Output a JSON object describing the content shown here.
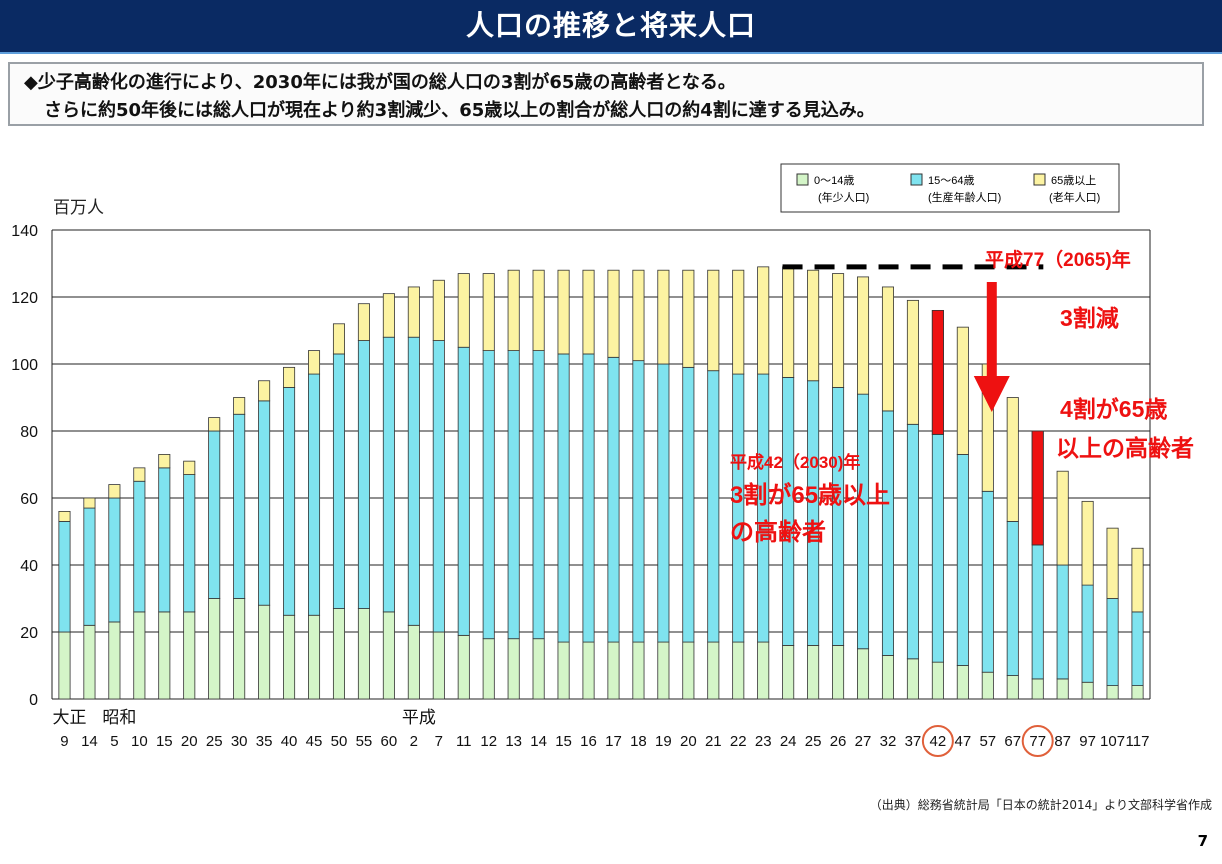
{
  "header": {
    "title": "人口の推移と将来人口"
  },
  "summary": {
    "line1": "◆少子高齢化の進行により、2030年には我が国の総人口の3割が65歳の高齢者となる。",
    "line2": "さらに約50年後には総人口が現在より約3割減少、65歳以上の割合が総人口の約4割に達する見込み。"
  },
  "legend": [
    {
      "label": "0〜14歳",
      "sub": "(年少人口)",
      "color": "#d4f5c8"
    },
    {
      "label": "15〜64歳",
      "sub": "(生産年齢人口)",
      "color": "#7fe3ef"
    },
    {
      "label": "65歳以上",
      "sub": "(老年人口)",
      "color": "#fcf3a2"
    }
  ],
  "annotations": {
    "a1_title": "平成77（2065)年",
    "a1_decrease": "3割減",
    "a1_elderly1": "4割が65歳",
    "a1_elderly2": "以上の高齢者",
    "a2_title": "平成42（2030)年",
    "a2_line1": "3割が65歳以上",
    "a2_line2": "の高齢者"
  },
  "footer": {
    "source": "（出典）総務省統計局「日本の統計2014」より文部科学省作成",
    "page": "7"
  },
  "colors": {
    "young": "#d4f5c8",
    "working": "#7fe3ef",
    "elderly": "#fcf3a2",
    "accent": "#ee1111",
    "header": "#0a2a63",
    "circle": "#e0603a"
  },
  "chart_data": {
    "type": "bar",
    "stacked": true,
    "ylabel": "百万人",
    "ylim": [
      0,
      140
    ],
    "yticks": [
      0,
      20,
      40,
      60,
      80,
      100,
      120,
      140
    ],
    "grid": true,
    "era_labels": [
      {
        "label": "大正",
        "at": "9"
      },
      {
        "label": "昭和",
        "at": "5"
      },
      {
        "label": "平成",
        "at": "2"
      }
    ],
    "categories": [
      "9",
      "14",
      "5",
      "10",
      "15",
      "20",
      "25",
      "30",
      "35",
      "40",
      "45",
      "50",
      "55",
      "60",
      "2",
      "7",
      "11",
      "12",
      "13",
      "14",
      "15",
      "16",
      "17",
      "18",
      "19",
      "20",
      "21",
      "22",
      "23",
      "24",
      "25",
      "26",
      "27",
      "32",
      "37",
      "42",
      "47",
      "57",
      "67",
      "77",
      "87",
      "97",
      "107",
      "117"
    ],
    "highlighted": [
      "42",
      "77"
    ],
    "series": [
      {
        "name": "0〜14歳",
        "values": [
          20,
          22,
          23,
          26,
          26,
          26,
          30,
          30,
          28,
          25,
          25,
          27,
          27,
          26,
          22,
          20,
          19,
          18,
          18,
          18,
          17,
          17,
          17,
          17,
          17,
          17,
          17,
          17,
          17,
          16,
          16,
          16,
          15,
          13,
          12,
          11,
          10,
          8,
          7,
          6,
          6,
          5,
          4,
          4
        ]
      },
      {
        "name": "15〜64歳",
        "values": [
          33,
          35,
          37,
          39,
          43,
          41,
          50,
          55,
          61,
          68,
          72,
          76,
          80,
          82,
          86,
          87,
          86,
          86,
          86,
          86,
          86,
          86,
          85,
          84,
          83,
          82,
          81,
          80,
          80,
          80,
          79,
          77,
          76,
          73,
          70,
          68,
          63,
          54,
          46,
          40,
          34,
          29,
          26,
          22
        ]
      },
      {
        "name": "65歳以上",
        "values": [
          3,
          3,
          4,
          4,
          4,
          4,
          4,
          5,
          6,
          6,
          7,
          9,
          11,
          13,
          15,
          18,
          22,
          23,
          24,
          24,
          25,
          25,
          26,
          27,
          28,
          29,
          30,
          31,
          32,
          33,
          33,
          34,
          35,
          37,
          37,
          37,
          38,
          38,
          37,
          34,
          28,
          25,
          21,
          19
        ]
      }
    ],
    "trend_line_end": "77"
  }
}
